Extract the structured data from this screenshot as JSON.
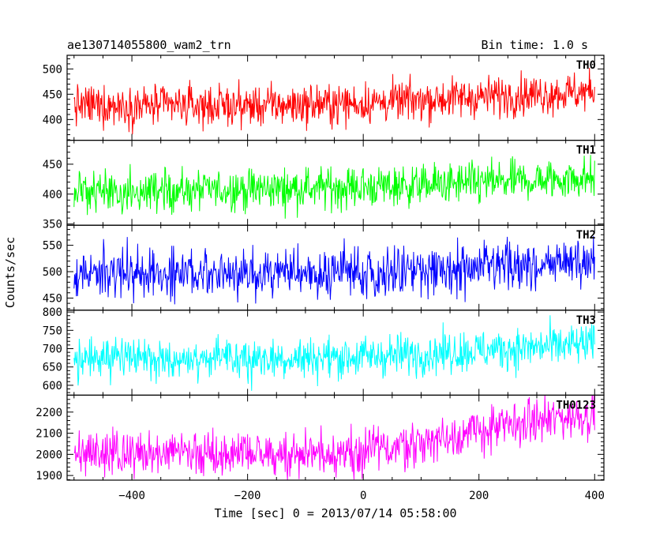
{
  "chart_data": {
    "type": "line",
    "title_left": "ae130714055800_wam2_trn",
    "title_right": "Bin time: 1.0 s",
    "xlabel": "Time [sec] 0 = 2013/07/14 05:58:00",
    "ylabel": "Counts/sec",
    "xlim": [
      -512,
      416
    ],
    "x_ticks": [
      -400,
      -200,
      0,
      200,
      400
    ],
    "x_tick_labels": [
      "−400",
      "−200",
      "0",
      "200",
      "400"
    ],
    "x_data_range": [
      -500,
      400
    ],
    "bin_time_s": 1.0,
    "grid": false,
    "panels": [
      {
        "name": "TH0",
        "color": "#ff0000",
        "ylim": [
          359,
          527
        ],
        "y_ticks": [
          400,
          450,
          500
        ],
        "trend": {
          "x": [
            -500,
            -200,
            0,
            200,
            400
          ],
          "y": [
            428,
            427,
            432,
            445,
            455
          ]
        },
        "noise_sd": 20
      },
      {
        "name": "TH1",
        "color": "#00ff00",
        "ylim": [
          348,
          490
        ],
        "y_ticks": [
          350,
          400,
          450
        ],
        "trend": {
          "x": [
            -500,
            -200,
            0,
            200,
            400
          ],
          "y": [
            402,
            408,
            412,
            418,
            428
          ]
        },
        "noise_sd": 17
      },
      {
        "name": "TH2",
        "color": "#0000ff",
        "ylim": [
          427,
          588
        ],
        "y_ticks": [
          450,
          500,
          550
        ],
        "trend": {
          "x": [
            -500,
            -200,
            0,
            200,
            400
          ],
          "y": [
            497,
            497,
            499,
            505,
            520
          ]
        },
        "noise_sd": 22
      },
      {
        "name": "TH3",
        "color": "#00ffff",
        "ylim": [
          573,
          805
        ],
        "y_ticks": [
          600,
          650,
          700,
          750,
          800
        ],
        "trend": {
          "x": [
            -500,
            -200,
            0,
            200,
            400
          ],
          "y": [
            672,
            672,
            678,
            695,
            712
          ]
        },
        "noise_sd": 28
      },
      {
        "name": "TH0123",
        "color": "#ff00ff",
        "ylim": [
          1878,
          2280
        ],
        "y_ticks": [
          1900,
          2000,
          2100,
          2200
        ],
        "trend": {
          "x": [
            -500,
            -200,
            0,
            100,
            200,
            300,
            400
          ],
          "y": [
            2000,
            1998,
            2012,
            2058,
            2110,
            2158,
            2192
          ]
        },
        "noise_sd": 52
      }
    ]
  }
}
